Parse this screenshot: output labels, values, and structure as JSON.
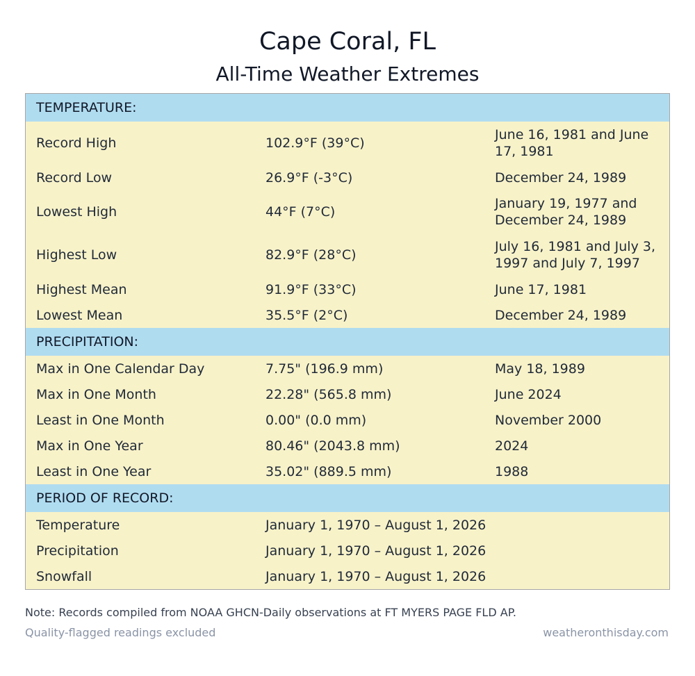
{
  "header": {
    "title": "Cape Coral, FL",
    "subtitle": "All-Time Weather Extremes"
  },
  "temperature": {
    "heading": "TEMPERATURE:",
    "rows": [
      {
        "label": "Record High",
        "value": "102.9°F (39°C)",
        "date": "June 16, 1981 and June 17, 1981"
      },
      {
        "label": "Record Low",
        "value": "26.9°F (-3°C)",
        "date": "December 24, 1989"
      },
      {
        "label": "Lowest High",
        "value": "44°F (7°C)",
        "date": "January 19, 1977 and December 24, 1989"
      },
      {
        "label": "Highest Low",
        "value": "82.9°F (28°C)",
        "date": "July 16, 1981 and July 3, 1997 and July 7, 1997"
      },
      {
        "label": "Highest Mean",
        "value": "91.9°F (33°C)",
        "date": "June 17, 1981"
      },
      {
        "label": "Lowest Mean",
        "value": "35.5°F (2°C)",
        "date": "December 24, 1989"
      }
    ]
  },
  "precipitation": {
    "heading": "PRECIPITATION:",
    "rows": [
      {
        "label": "Max in One Calendar Day",
        "value": "7.75\" (196.9 mm)",
        "date": "May 18, 1989"
      },
      {
        "label": "Max in One Month",
        "value": "22.28\" (565.8 mm)",
        "date": "June 2024"
      },
      {
        "label": "Least in One Month",
        "value": "0.00\" (0.0 mm)",
        "date": "November 2000"
      },
      {
        "label": "Max in One Year",
        "value": "80.46\" (2043.8 mm)",
        "date": "2024"
      },
      {
        "label": "Least in One Year",
        "value": "35.02\" (889.5 mm)",
        "date": "1988"
      }
    ]
  },
  "period": {
    "heading": "PERIOD OF RECORD:",
    "rows": [
      {
        "label": "Temperature",
        "value": "January 1, 1970 – August 1, 2026"
      },
      {
        "label": "Precipitation",
        "value": "January 1, 1970 – August 1, 2026"
      },
      {
        "label": "Snowfall",
        "value": "January 1, 1970 – August 1, 2026"
      }
    ]
  },
  "footer": {
    "note": "Note: Records compiled from NOAA GHCN-Daily observations at FT MYERS PAGE FLD AP.",
    "qc": "Quality-flagged readings excluded",
    "source": "weatheronthisday.com"
  }
}
